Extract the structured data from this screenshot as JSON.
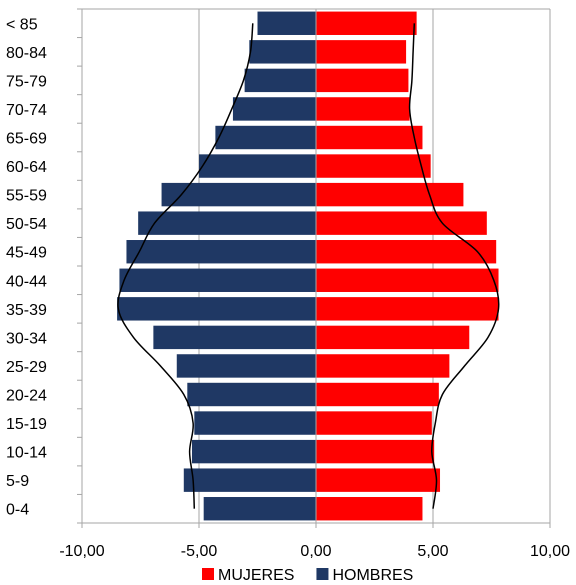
{
  "chart_data": {
    "type": "bar",
    "orientation": "horizontal",
    "categories": [
      "0-4",
      "5-9",
      "10-14",
      "15-19",
      "20-24",
      "25-29",
      "30-34",
      "35-39",
      "40-44",
      "45-49",
      "50-54",
      "55-59",
      "60-64",
      "65-69",
      "70-74",
      "75-79",
      "80-84",
      "< 85"
    ],
    "series": [
      {
        "name": "MUJERES",
        "color": "#ff0000",
        "values": [
          4.55,
          5.3,
          5.05,
          4.95,
          5.25,
          5.7,
          6.55,
          7.8,
          7.8,
          7.7,
          7.3,
          6.3,
          4.9,
          4.55,
          4.0,
          3.95,
          3.85,
          4.3
        ]
      },
      {
        "name": "HOMBRES",
        "color": "#1f3864",
        "values": [
          -4.8,
          -5.65,
          -5.3,
          -5.2,
          -5.5,
          -5.95,
          -6.95,
          -8.5,
          -8.4,
          -8.1,
          -7.6,
          -6.6,
          -5.0,
          -4.3,
          -3.55,
          -3.05,
          -2.85,
          -2.5
        ]
      }
    ],
    "overlay_lines": [
      {
        "values": [
          5.0,
          5.15,
          4.95,
          5.1,
          5.4,
          6.35,
          7.35,
          7.8,
          7.6,
          6.9,
          5.4,
          4.85,
          4.5,
          4.2,
          4.0,
          4.1,
          4.15,
          4.2
        ]
      },
      {
        "values": [
          -5.2,
          -5.25,
          -5.4,
          -5.25,
          -5.65,
          -6.65,
          -7.8,
          -8.45,
          -8.2,
          -7.55,
          -6.9,
          -5.75,
          -4.85,
          -4.15,
          -3.6,
          -3.1,
          -2.8,
          -2.7
        ]
      }
    ],
    "xlim": [
      -10,
      10
    ],
    "xticks": [
      "-10,00",
      "-5,00",
      "0,00",
      "5,00",
      "10,00"
    ],
    "grid": true,
    "legend": "bottom"
  }
}
